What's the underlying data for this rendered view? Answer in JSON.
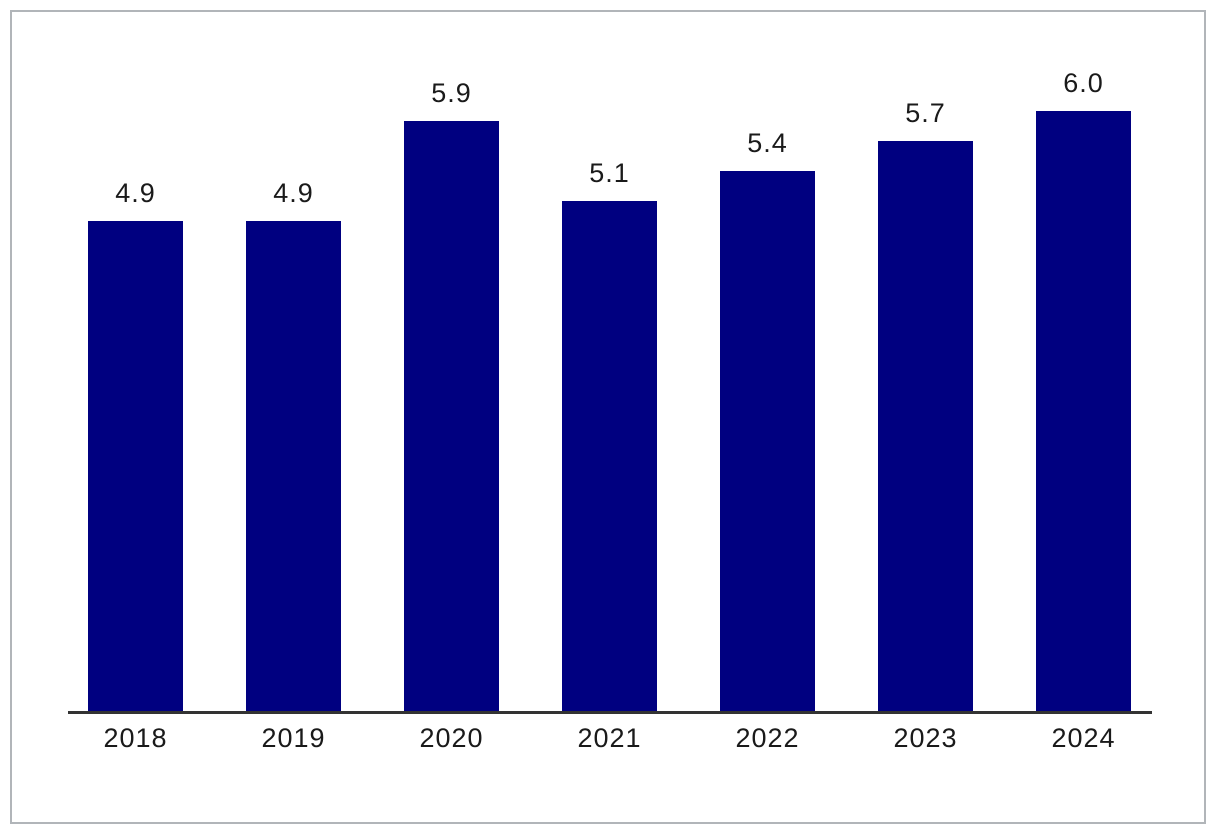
{
  "frame": {
    "border_color": "#b1b5b9",
    "background": "#ffffff"
  },
  "chart_data": {
    "type": "bar",
    "categories": [
      "2018",
      "2019",
      "2020",
      "2021",
      "2022",
      "2023",
      "2024"
    ],
    "values": [
      4.9,
      4.9,
      5.9,
      5.1,
      5.4,
      5.7,
      6.0
    ],
    "value_labels": [
      "4.9",
      "4.9",
      "5.9",
      "5.1",
      "5.4",
      "5.7",
      "6.0"
    ],
    "series_name": "",
    "title": "",
    "xlabel": "",
    "ylabel": "",
    "ylim": [
      0,
      6.5
    ],
    "grid": false,
    "legend": false,
    "data_labels_position": "above-bars",
    "bar_color": "#000080",
    "axis_color": "#333333",
    "label_color": "#1a1a1a"
  }
}
